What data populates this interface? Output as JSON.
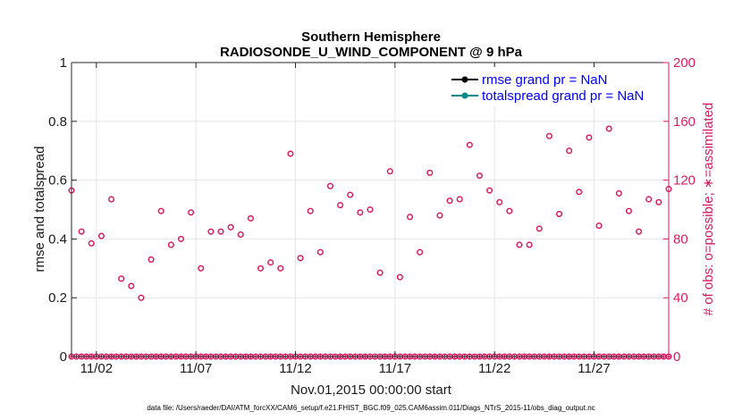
{
  "chart_data": {
    "type": "scatter",
    "title": "Southern Hemisphere",
    "subtitle": "RADIOSONDE_U_WIND_COMPONENT @ 9 hPa",
    "xlabel": "Nov.01,2015 00:00:00 start",
    "ylabel": "rmse and totalspread",
    "ylabel_right": "# of obs: o=possible; ∗=assimilated",
    "footnote": "data file: /Users/raeder/DAI/ATM_forcXX/CAM6_setup/f.e21.FHIST_BGC.f09_025.CAM6assim.011/Diags_NTrS_2015-11/obs_diag_output.nc",
    "xlim": [
      0.75,
      30.75
    ],
    "ylim": [
      0,
      1
    ],
    "ylim_right": [
      0,
      200
    ],
    "x_ticks": [
      {
        "x": 2,
        "label": "11/02"
      },
      {
        "x": 7,
        "label": "11/07"
      },
      {
        "x": 12,
        "label": "11/12"
      },
      {
        "x": 17,
        "label": "11/17"
      },
      {
        "x": 22,
        "label": "11/22"
      },
      {
        "x": 27,
        "label": "11/27"
      }
    ],
    "y_ticks": [
      {
        "value": 0,
        "label": "0"
      },
      {
        "value": 0.2,
        "label": "0.2"
      },
      {
        "value": 0.4,
        "label": "0.4"
      },
      {
        "value": 0.6,
        "label": "0.6"
      },
      {
        "value": 0.8,
        "label": "0.8"
      },
      {
        "value": 1,
        "label": "1"
      }
    ],
    "y_ticks_right": [
      {
        "value": 0,
        "label": "0"
      },
      {
        "value": 40,
        "label": "40"
      },
      {
        "value": 80,
        "label": "80"
      },
      {
        "value": 120,
        "label": "120"
      },
      {
        "value": 160,
        "label": "160"
      },
      {
        "value": 200,
        "label": "200"
      }
    ],
    "grid": true,
    "legend_position": "top-right",
    "series": [
      {
        "name": "rmse grand pr = NaN",
        "color": "#000000",
        "marker": "filled-circle",
        "values": []
      },
      {
        "name": "totalspread grand pr = NaN",
        "color": "#008b8b",
        "marker": "filled-circle",
        "values": []
      }
    ],
    "obs_possible": {
      "color": "#d81b60",
      "x": [
        0.75,
        1.25,
        1.75,
        2.25,
        2.75,
        3.25,
        3.75,
        4.25,
        4.75,
        5.25,
        5.75,
        6.25,
        6.75,
        7.25,
        7.75,
        8.25,
        8.75,
        9.25,
        9.75,
        10.25,
        10.75,
        11.25,
        11.75,
        12.25,
        12.75,
        13.25,
        13.75,
        14.25,
        14.75,
        15.25,
        15.75,
        16.25,
        16.75,
        17.25,
        17.75,
        18.25,
        18.75,
        19.25,
        19.75,
        20.25,
        20.75,
        21.25,
        21.75,
        22.25,
        22.75,
        23.25,
        23.75,
        24.25,
        24.75,
        25.25,
        25.75,
        26.25,
        26.75,
        27.25,
        27.75,
        28.25,
        28.75,
        29.25,
        29.75,
        30.25,
        30.75
      ],
      "values": [
        113,
        85,
        77,
        82,
        107,
        53,
        48,
        40,
        66,
        99,
        76,
        80,
        98,
        60,
        85,
        85,
        88,
        83,
        94,
        60,
        64,
        60,
        138,
        67,
        99,
        71,
        116,
        103,
        110,
        98,
        100,
        57,
        126,
        54,
        95,
        71,
        125,
        96,
        106,
        107,
        144,
        123,
        113,
        105,
        99,
        76,
        76,
        87,
        150,
        97,
        140,
        112,
        149,
        89,
        155,
        111,
        99,
        85,
        107,
        105,
        114
      ],
      "zero_line_count": 0
    },
    "obs_assimilated": {
      "color": "#d81b60",
      "values_all": 0
    }
  }
}
